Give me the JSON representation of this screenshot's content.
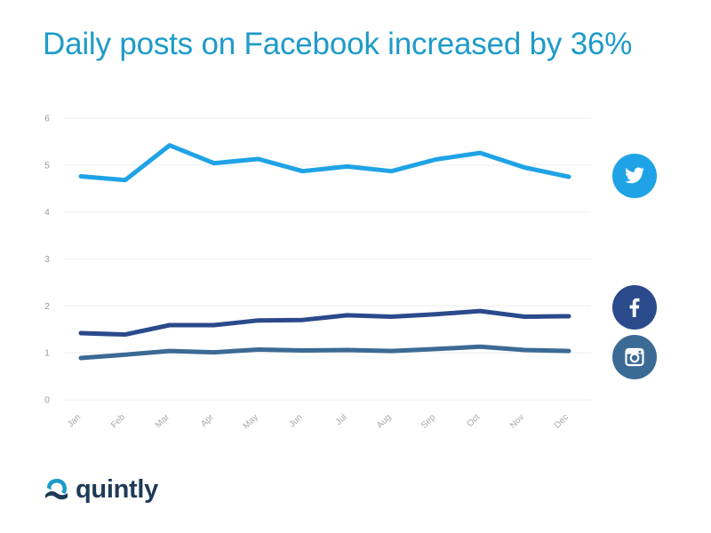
{
  "page": {
    "title": "Daily posts on Facebook increased by 36%"
  },
  "brand": {
    "name": "quintly",
    "mark_icon": "quintly-logo-icon",
    "text_color": "#1f3a57",
    "mark_color": "#1e9bc8"
  },
  "chart_data": {
    "type": "line",
    "title": "Daily posts on Facebook increased by 36%",
    "xlabel": "",
    "ylabel": "",
    "categories": [
      "Jan",
      "Feb",
      "Mar",
      "Apr",
      "May",
      "Jun",
      "Jul",
      "Aug",
      "Sep",
      "Oct",
      "Nov",
      "Dec"
    ],
    "ylim": [
      0,
      6
    ],
    "yticks": [
      0,
      1,
      2,
      3,
      4,
      5,
      6
    ],
    "grid": true,
    "legend": "icons-right",
    "series": [
      {
        "color": "#1fa3e6",
        "icon": "twitter-bird-icon",
        "values": [
          4.76,
          4.68,
          5.42,
          5.04,
          5.13,
          4.87,
          4.97,
          4.87,
          5.12,
          5.26,
          4.95,
          4.75
        ]
      },
      {
        "color": "#2b4a8c",
        "icon": "facebook-f-icon",
        "values": [
          1.42,
          1.39,
          1.59,
          1.59,
          1.69,
          1.7,
          1.8,
          1.77,
          1.82,
          1.89,
          1.77,
          1.78
        ]
      },
      {
        "color": "#3b6a95",
        "icon": "instagram-camera-icon",
        "values": [
          0.89,
          0.96,
          1.04,
          1.01,
          1.07,
          1.05,
          1.06,
          1.04,
          1.08,
          1.13,
          1.06,
          1.04
        ]
      }
    ]
  }
}
